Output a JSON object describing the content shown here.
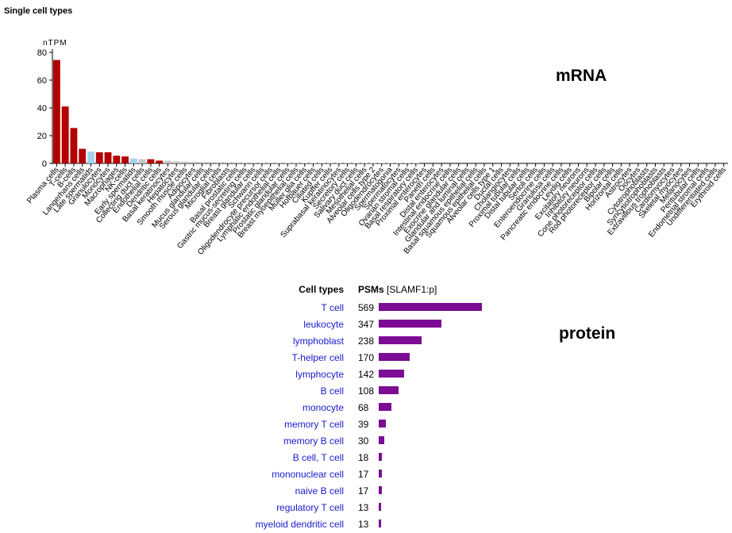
{
  "section_title": "Single cell types",
  "mrna_label": "mRNA",
  "protein_label": "protein",
  "colors": {
    "red": "#b30000",
    "blue": "#a5d3ec",
    "purple": "#7b0c93",
    "gray": "#c8c8c8",
    "link": "#1a1acc"
  },
  "chart_data": [
    {
      "type": "bar",
      "ylabel": "nTPM",
      "ylim": [
        0,
        80
      ],
      "yticks": [
        0,
        20,
        40,
        60,
        80
      ],
      "categories": [
        "Plasma cells",
        "T-cells",
        "B-cells",
        "Langerhans cells",
        "Late spermatids",
        "Granulocytes",
        "Monocytes",
        "Macrophages",
        "NK-cells",
        "Early spermatids",
        "Collecting duct cells",
        "Endothelial cells",
        "Dendritic cells",
        "Basal keratinocytes",
        "Hepatocytes",
        "Smooth muscle cells",
        "Adipocytes",
        "Mucus glandular cells",
        "Serous glandular cells",
        "Microglial cells",
        "Fibroblasts",
        "Basal prostatic cells",
        "Gastric mucus-secreting cells",
        "Breast glandular cells",
        "Schwann cells",
        "Oligodendrocyte precursor cells",
        "Lymphatic endothelial cells",
        "Prostatic glandular cells",
        "Breast myoepithelial cells",
        "Müller glia cells",
        "Hofbauer cells",
        "Ciliated cells",
        "Kupffer cells",
        "Suprabasal keratinocytes",
        "Secretory cells",
        "Salivary duct cells",
        "Mesothelial cells",
        "Alveolar cells type 2",
        "Oligodendrocytes",
        "Spermatogonia",
        "Spermatocytes",
        "Ovarian stromal cells",
        "Basal respiratory cells",
        "Proximal enterocytes",
        "Paneth cells",
        "Distal enterocytes",
        "Intestinal endocrine cells",
        "Exocrine glandular cells",
        "Glandular and luminal cells",
        "Basal squamous epithelial cells",
        "Squamous epithelial cells",
        "Alveolar cells type 1",
        "Ductal cells",
        "Cholangiocytes",
        "Proximal tubular cells",
        "Distal tubular cells",
        "Sertoli cells",
        "Enteroendocrine cells",
        "Granulosa cells",
        "Pancreatic endocrine cells",
        "Leydig cells",
        "Excitatory neurons",
        "Inhibitory neurons",
        "Cone photoreceptor cells",
        "Rod photoreceptor cells",
        "Bipolar cells",
        "Horizontal cells",
        "Astrocytes",
        "Oocytes",
        "Cytotrophoblasts",
        "Syncytiotrophoblasts",
        "Extravillous trophoblasts",
        "Cardiomyocytes",
        "Skeletal myocytes",
        "Melanocytes",
        "Peritubular cells",
        "Endometrial stromal cells",
        "Undifferentiated cells",
        "Erythroid cells"
      ],
      "values": [
        74.5,
        41.0,
        25.5,
        10.5,
        8.5,
        8.0,
        8.0,
        5.5,
        5.0,
        3.5,
        3.0,
        3.0,
        2.0,
        2.0,
        1.5,
        1.3,
        1.2,
        1.0,
        1.0,
        0.9,
        0.8,
        0.7,
        0.6,
        0.6,
        0.5,
        0.5,
        0.5,
        0.4,
        0.4,
        0.4,
        0.3,
        0.3,
        0.3,
        0.2,
        0.2,
        0.2,
        0.2,
        0.1,
        0.1,
        0.1,
        0.1,
        0.1,
        0.1,
        0,
        0,
        0,
        0,
        0,
        0,
        0,
        0,
        0,
        0,
        0,
        0,
        0,
        0,
        0,
        0,
        0,
        0,
        0,
        0,
        0,
        0,
        0,
        0,
        0,
        0,
        0,
        0,
        0,
        0,
        0,
        0,
        0,
        0,
        0,
        0
      ],
      "bar_colors": [
        "red",
        "red",
        "red",
        "red",
        "blue",
        "red",
        "red",
        "red",
        "red",
        "blue",
        "gray",
        "red",
        "red",
        "gray",
        "gray",
        "gray",
        "gray",
        "gray",
        "gray",
        "gray",
        "gray",
        "gray",
        "gray",
        "gray",
        "gray",
        "gray",
        "gray",
        "gray",
        "gray",
        "gray",
        "gray",
        "gray",
        "gray",
        "gray",
        "gray",
        "gray",
        "gray",
        "gray",
        "gray",
        "gray",
        "gray",
        "gray",
        "gray",
        "gray",
        "gray",
        "gray",
        "gray",
        "gray",
        "gray",
        "gray",
        "gray",
        "gray",
        "gray",
        "gray",
        "gray",
        "gray",
        "gray",
        "gray",
        "gray",
        "gray",
        "gray",
        "gray",
        "gray",
        "gray",
        "gray",
        "gray",
        "gray",
        "gray",
        "gray",
        "gray",
        "gray",
        "gray",
        "gray",
        "gray",
        "gray",
        "gray",
        "gray",
        "gray",
        "gray"
      ]
    },
    {
      "type": "bar",
      "orientation": "horizontal",
      "header_cell_types": "Cell types",
      "header_psms_bold": "PSMs",
      "header_psms_rest": " [SLAMF1:p]",
      "xlim": [
        0,
        569
      ],
      "categories": [
        "T cell",
        "leukocyte",
        "lymphoblast",
        "T-helper cell",
        "lymphocyte",
        "B cell",
        "monocyte",
        "memory T cell",
        "memory B cell",
        "B cell, T cell",
        "mononuclear cell",
        "naive B cell",
        "regulatory T cell",
        "myeloid dendritic cell"
      ],
      "values": [
        569,
        347,
        238,
        170,
        142,
        108,
        68,
        39,
        30,
        18,
        17,
        17,
        13,
        13
      ]
    }
  ]
}
